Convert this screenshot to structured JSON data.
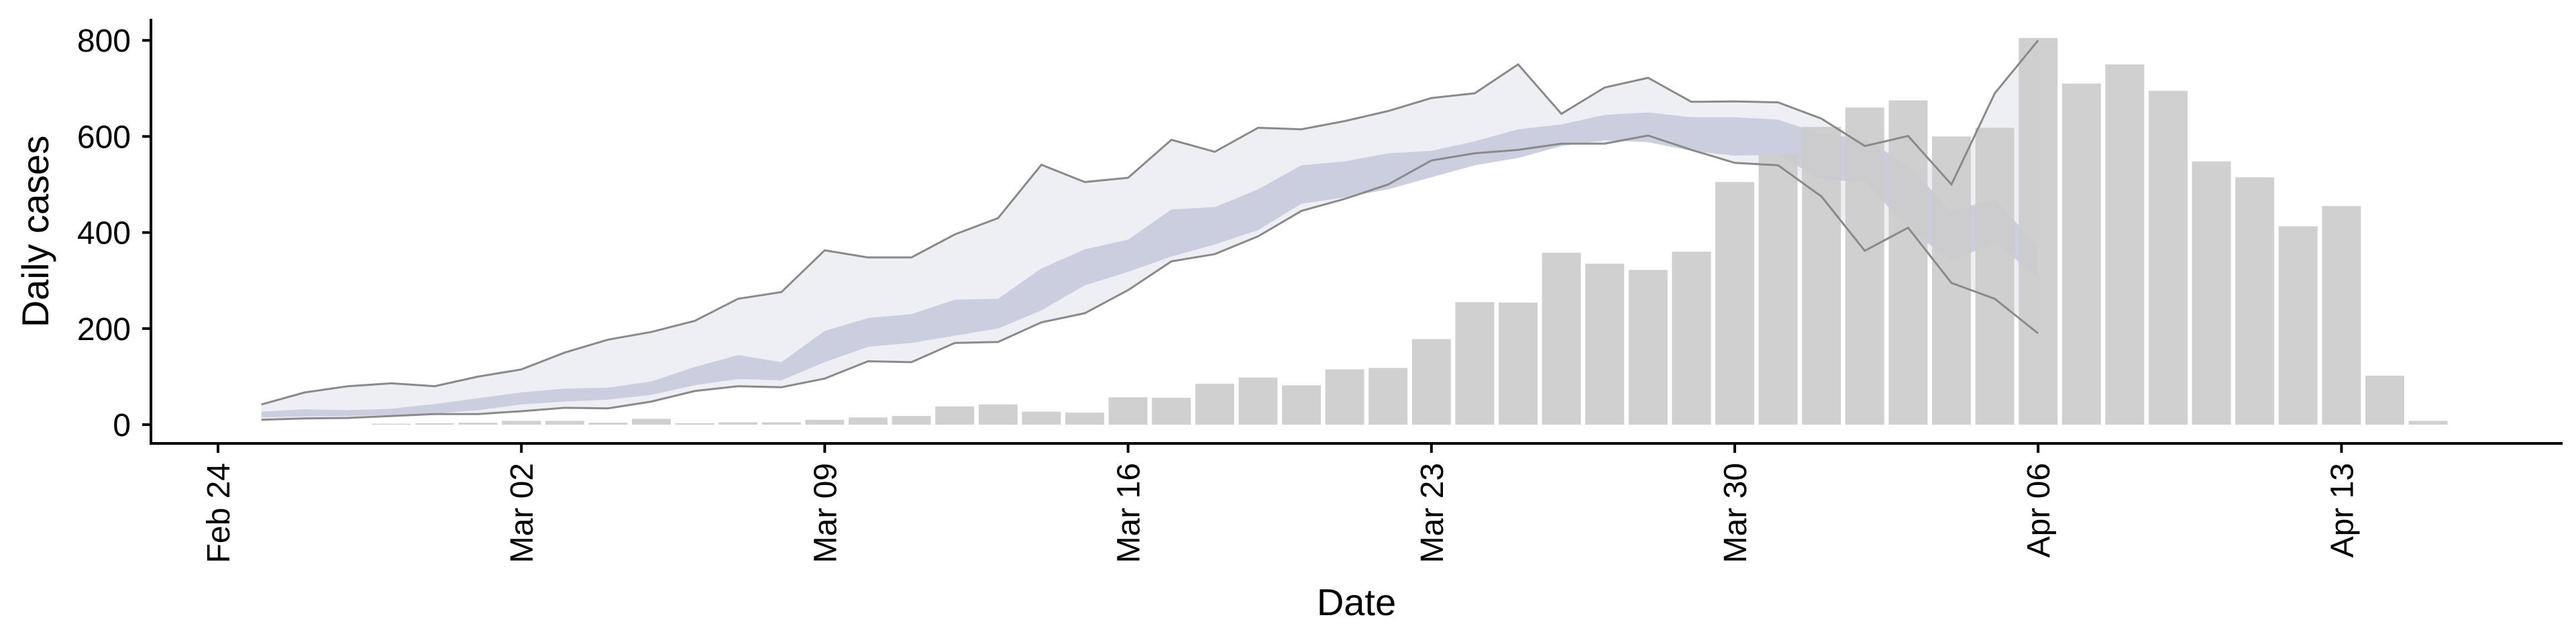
{
  "chart_data": {
    "type": "bar",
    "xlabel": "Date",
    "ylabel": "Daily cases",
    "ylim": [
      0,
      850
    ],
    "yticks": [
      0,
      200,
      400,
      600,
      800
    ],
    "xticks": [
      "Feb 24",
      "Mar 02",
      "Mar 09",
      "Mar 16",
      "Mar 23",
      "Mar 30",
      "Apr 06",
      "Apr 13"
    ],
    "x_first": "2020-02-24",
    "grid": false,
    "legend": "none",
    "colors": {
      "bars": "#cccccc",
      "outer_band": "#ebecf2",
      "inner_band": "#c5cadb",
      "band_edge": "#8a8a8a"
    },
    "bars": {
      "x": [
        "Feb 28",
        "Feb 29",
        "Mar 01",
        "Mar 02",
        "Mar 03",
        "Mar 04",
        "Mar 05",
        "Mar 06",
        "Mar 07",
        "Mar 08",
        "Mar 09",
        "Mar 10",
        "Mar 11",
        "Mar 12",
        "Mar 13",
        "Mar 14",
        "Mar 15",
        "Mar 16",
        "Mar 17",
        "Mar 18",
        "Mar 19",
        "Mar 20",
        "Mar 21",
        "Mar 22",
        "Mar 23",
        "Mar 24",
        "Mar 25",
        "Mar 26",
        "Mar 27",
        "Mar 28",
        "Mar 29",
        "Mar 30",
        "Mar 31",
        "Apr 01",
        "Apr 02",
        "Apr 03",
        "Apr 04",
        "Apr 05",
        "Apr 06",
        "Apr 07",
        "Apr 08",
        "Apr 09",
        "Apr 10",
        "Apr 11",
        "Apr 12",
        "Apr 13",
        "Apr 14",
        "Apr 15"
      ],
      "values": [
        2,
        3,
        4,
        8,
        8,
        4,
        12,
        3,
        5,
        5,
        10,
        15,
        18,
        38,
        42,
        27,
        25,
        57,
        56,
        85,
        98,
        82,
        115,
        118,
        178,
        255,
        254,
        358,
        335,
        322,
        360,
        505,
        562,
        620,
        660,
        675,
        600,
        618,
        805,
        710,
        750,
        695,
        548,
        515,
        413,
        455,
        102,
        8
      ]
    },
    "uncertainty_bands": {
      "x": [
        "Feb 25",
        "Feb 26",
        "Feb 27",
        "Feb 28",
        "Feb 29",
        "Mar 01",
        "Mar 02",
        "Mar 03",
        "Mar 04",
        "Mar 05",
        "Mar 06",
        "Mar 07",
        "Mar 08",
        "Mar 09",
        "Mar 10",
        "Mar 11",
        "Mar 12",
        "Mar 13",
        "Mar 14",
        "Mar 15",
        "Mar 16",
        "Mar 17",
        "Mar 18",
        "Mar 19",
        "Mar 20",
        "Mar 21",
        "Mar 22",
        "Mar 23",
        "Mar 24",
        "Mar 25",
        "Mar 26",
        "Mar 27",
        "Mar 28",
        "Mar 29",
        "Mar 30",
        "Mar 31",
        "Apr 01",
        "Apr 02",
        "Apr 03",
        "Apr 04",
        "Apr 05",
        "Apr 06"
      ],
      "outer_upper": [
        42,
        67,
        80,
        86,
        80,
        100,
        115,
        150,
        177,
        193,
        216,
        262,
        276,
        363,
        348,
        348,
        396,
        430,
        541,
        505,
        514,
        593,
        568,
        618,
        615,
        632,
        653,
        680,
        690,
        750,
        647,
        702,
        722,
        672,
        673,
        671,
        637,
        580,
        601,
        500,
        690,
        800
      ],
      "outer_lower": [
        10,
        13,
        14,
        18,
        22,
        22,
        28,
        35,
        34,
        48,
        70,
        80,
        78,
        96,
        132,
        130,
        170,
        172,
        213,
        232,
        280,
        340,
        355,
        392,
        445,
        470,
        500,
        550,
        565,
        572,
        585,
        585,
        602,
        572,
        545,
        540,
        475,
        362,
        410,
        295,
        262,
        190
      ],
      "inner_upper": [
        27,
        32,
        30,
        33,
        43,
        55,
        67,
        75,
        77,
        90,
        120,
        145,
        130,
        195,
        222,
        230,
        260,
        262,
        325,
        365,
        385,
        448,
        453,
        490,
        540,
        548,
        565,
        570,
        590,
        615,
        625,
        645,
        650,
        640,
        640,
        635,
        605,
        595,
        540,
        445,
        470,
        370
      ],
      "inner_lower": [
        15,
        17,
        18,
        20,
        23,
        30,
        42,
        48,
        52,
        62,
        82,
        95,
        92,
        130,
        162,
        170,
        185,
        200,
        238,
        290,
        318,
        350,
        375,
        405,
        460,
        473,
        490,
        515,
        540,
        555,
        580,
        592,
        588,
        570,
        560,
        562,
        510,
        505,
        410,
        340,
        380,
        305
      ]
    }
  }
}
